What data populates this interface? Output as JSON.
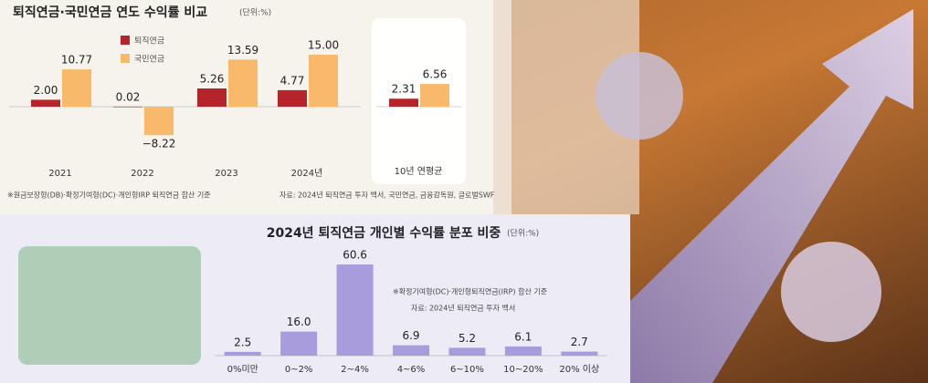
{
  "chart_data": [
    {
      "type": "bar",
      "title": "퇴직연금·국민연금 연도 수익률 비교",
      "unit": "(단위:%)",
      "categories": [
        "2021",
        "2022",
        "2023",
        "2024년"
      ],
      "series": [
        {
          "name": "퇴직연금",
          "color": "#b5232b",
          "values": [
            2.0,
            0.02,
            5.26,
            4.77
          ],
          "value_labels": [
            "2.00",
            "0.02",
            "5.26",
            "4.77"
          ]
        },
        {
          "name": "국민연금",
          "color": "#f9b96b",
          "values": [
            10.77,
            -8.22,
            13.59,
            15.0
          ],
          "value_labels": [
            "10.77",
            "−8.22",
            "13.59",
            "15.00"
          ]
        }
      ],
      "notes": [
        "※원금보장형(DB)·확정기여형(DC)·개인형IRP 퇴직연금 합산 기준",
        "자료: 2024년 퇴직연금 투자 백서, 국민연금, 금융감독원, 글로벌SWF"
      ]
    },
    {
      "type": "bar",
      "categories": [
        "10년 연평균"
      ],
      "series": [
        {
          "color": "#b5232b",
          "values": [
            2.31
          ],
          "value_labels": [
            "2.31"
          ]
        },
        {
          "color": "#f9b96b",
          "values": [
            6.56
          ],
          "value_labels": [
            "6.56"
          ]
        }
      ]
    },
    {
      "type": "bar",
      "title": "2024년 퇴직연금 개인별 수익률 분포 비중",
      "unit": "(단위:%)",
      "categories": [
        "0%미만",
        "0~2%",
        "2~4%",
        "4~6%",
        "6~10%",
        "10~20%",
        "20% 이상"
      ],
      "values": [
        2.5,
        16.0,
        60.6,
        6.9,
        5.2,
        6.1,
        2.7
      ],
      "value_labels": [
        "2.5",
        "16.0",
        "60.6",
        "6.9",
        "5.2",
        "6.1",
        "2.7"
      ],
      "color": "#a99cdc",
      "notes": [
        "※확정기여형(DC)·개인형퇴직연금(IRP) 합산 기준",
        "자료: 2024년 퇴직연금 투자 백서"
      ]
    }
  ]
}
